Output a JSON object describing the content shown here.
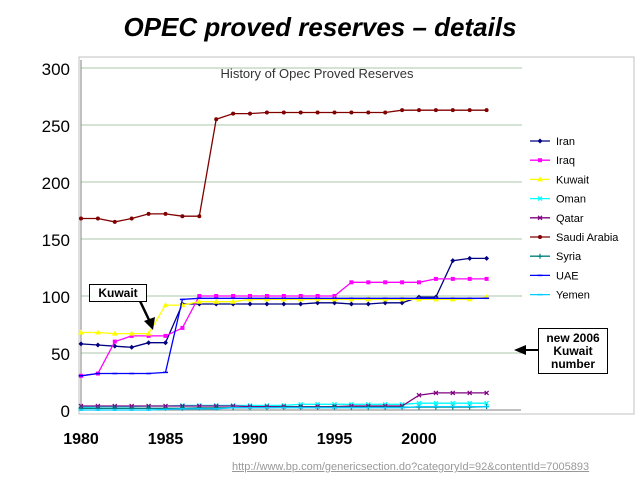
{
  "slide": {
    "title": "OPEC proved reserves – details",
    "source_url": "http://www.bp.com/genericsection.do?categoryId=92&contentId=7005893"
  },
  "callouts": {
    "kuwait": "Kuwait",
    "new_kuwait_line1": "new 2006",
    "new_kuwait_line2": "Kuwait",
    "new_kuwait_line3": "number"
  },
  "colors": {
    "plot_background": "#ffffff",
    "frame": "#c0c0c0",
    "gridline": "#a9c7a9",
    "axis_text": "#000000"
  },
  "chart_data": {
    "type": "line",
    "title": "History of Opec Proved Reserves",
    "xlabel": "",
    "ylabel": "",
    "xlim": [
      1980,
      2005
    ],
    "ylim": [
      0,
      300
    ],
    "x_ticks": [
      1980,
      1985,
      1990,
      1995,
      2000
    ],
    "y_ticks": [
      0,
      50,
      100,
      150,
      200,
      250,
      300
    ],
    "grid": "horizontal",
    "legend_position": "right",
    "x": [
      1980,
      1981,
      1982,
      1983,
      1984,
      1985,
      1986,
      1987,
      1988,
      1989,
      1990,
      1991,
      1992,
      1993,
      1994,
      1995,
      1996,
      1997,
      1998,
      1999,
      2000,
      2001,
      2002,
      2003,
      2004
    ],
    "series": [
      {
        "name": "Iran",
        "color": "#000080",
        "marker": "diamond",
        "values": [
          58,
          57,
          56,
          55,
          59,
          59,
          93,
          93,
          93,
          93,
          93,
          93,
          93,
          93,
          94,
          94,
          93,
          93,
          94,
          94,
          99,
          99,
          131,
          133,
          133
        ]
      },
      {
        "name": "Iraq",
        "color": "#ff00ff",
        "marker": "square",
        "values": [
          30,
          32,
          60,
          65,
          65,
          65,
          72,
          100,
          100,
          100,
          100,
          100,
          100,
          100,
          100,
          100,
          112,
          112,
          112,
          112,
          112,
          115,
          115,
          115,
          115
        ]
      },
      {
        "name": "Kuwait",
        "color": "#ffff00",
        "marker": "triangle",
        "values": [
          68,
          68,
          67,
          67,
          67,
          92,
          92,
          95,
          95,
          95,
          97,
          97,
          97,
          97,
          97,
          97,
          97,
          97,
          97,
          97,
          97,
          97,
          97,
          97,
          99
        ]
      },
      {
        "name": "Oman",
        "color": "#00ffff",
        "marker": "x",
        "values": [
          2.5,
          3,
          3,
          3,
          3.5,
          3.5,
          4,
          4,
          4,
          4,
          4,
          4,
          4,
          5,
          5,
          5,
          5,
          5,
          5,
          5,
          6,
          6,
          6,
          6,
          6
        ]
      },
      {
        "name": "Qatar",
        "color": "#800080",
        "marker": "star",
        "values": [
          3.5,
          3.5,
          3.5,
          3.5,
          3.5,
          3.5,
          3.5,
          3.5,
          3.5,
          3.5,
          3,
          3,
          3,
          3,
          3,
          3,
          3.5,
          3.5,
          3.5,
          3.5,
          13,
          15,
          15,
          15,
          15
        ]
      },
      {
        "name": "Saudi Arabia",
        "color": "#800000",
        "marker": "circle",
        "values": [
          168,
          168,
          165,
          168,
          172,
          172,
          170,
          170,
          255,
          260,
          260,
          261,
          261,
          261,
          261,
          261,
          261,
          261,
          261,
          263,
          263,
          263,
          263,
          263,
          263
        ]
      },
      {
        "name": "Syria",
        "color": "#008080",
        "marker": "plus",
        "values": [
          1.5,
          1.5,
          1.5,
          1.5,
          1.5,
          1.5,
          1.5,
          1.8,
          1.8,
          2,
          2,
          2,
          2.5,
          2.5,
          2.5,
          2.5,
          2.5,
          2.5,
          2.5,
          2.5,
          2.5,
          2.5,
          2.5,
          2.5,
          3
        ]
      },
      {
        "name": "UAE",
        "color": "#0000ff",
        "marker": "dash",
        "values": [
          30,
          32,
          32,
          32,
          32,
          33,
          97,
          98,
          98,
          98,
          98,
          98,
          98,
          98,
          98,
          98,
          98,
          98,
          98,
          98,
          98,
          98,
          98,
          98,
          98
        ]
      },
      {
        "name": "Yemen",
        "color": "#00ccff",
        "marker": "dash",
        "values": [
          0,
          0,
          0,
          0,
          0,
          0.5,
          1,
          1,
          1,
          2,
          2,
          2,
          2,
          2,
          2,
          2,
          2,
          2,
          2,
          2,
          3,
          3,
          3,
          3,
          3
        ]
      }
    ]
  }
}
